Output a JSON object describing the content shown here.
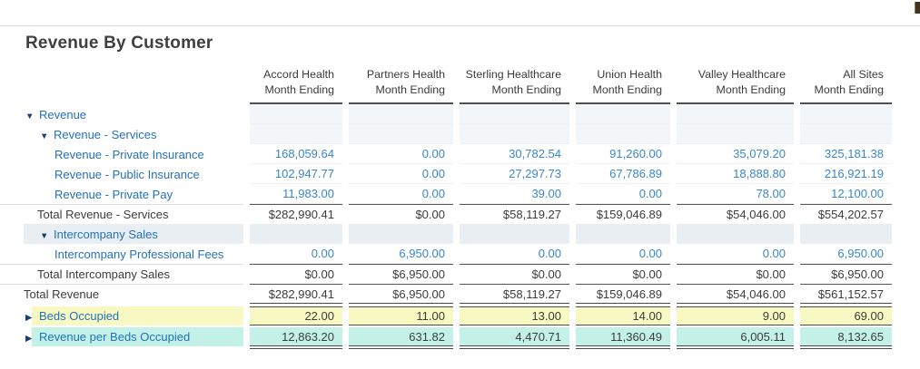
{
  "page": {
    "title": "Revenue By Customer"
  },
  "icons": {
    "expanded_triangle": "▼",
    "collapsed_triangle": "▶",
    "corner_partial_icon": "top-right-partial-icon"
  },
  "colors": {
    "label_blue": "#2471b8",
    "value_blue": "#3a87c8",
    "triangle_navy": "#1b3e6f",
    "group_row_tint": "#f3f6f8",
    "steel_row": "#e8eef2",
    "yellow_row": "#f8f8c3",
    "cyan_row": "#c3f1e7",
    "total_line": "#4a4a4a"
  },
  "table": {
    "columns": [
      {
        "name": "Accord Health",
        "period": "Month Ending"
      },
      {
        "name": "Partners Health",
        "period": "Month Ending"
      },
      {
        "name": "Sterling Healthcare",
        "period": "Month Ending"
      },
      {
        "name": "Union Health",
        "period": "Month Ending"
      },
      {
        "name": "Valley Healthcare",
        "period": "Month Ending"
      },
      {
        "name": "All Sites",
        "period": "Month Ending"
      }
    ],
    "rows": [
      {
        "label": "Revenue",
        "type": "group",
        "level": 1,
        "expanded": true,
        "values": [
          "",
          "",
          "",
          "",
          "",
          ""
        ]
      },
      {
        "label": "Revenue - Services",
        "type": "group",
        "level": 2,
        "expanded": true,
        "values": [
          "",
          "",
          "",
          "",
          "",
          ""
        ]
      },
      {
        "label": "Revenue - Private Insurance",
        "type": "leaf",
        "level": 3,
        "values": [
          "168,059.64",
          "0.00",
          "30,782.54",
          "91,260.00",
          "35,079.20",
          "325,181.38"
        ]
      },
      {
        "label": "Revenue - Public Insurance",
        "type": "leaf",
        "level": 3,
        "values": [
          "102,947.77",
          "0.00",
          "27,297.73",
          "67,786.89",
          "18,888.80",
          "216,921.19"
        ]
      },
      {
        "label": "Revenue - Private Pay",
        "type": "leaf",
        "level": 3,
        "values": [
          "11,983.00",
          "0.00",
          "39.00",
          "0.00",
          "78.00",
          "12,100.00"
        ]
      },
      {
        "label": "Total Revenue - Services",
        "type": "total",
        "level": 2,
        "values": [
          "$282,990.41",
          "$0.00",
          "$58,119.27",
          "$159,046.89",
          "$54,046.00",
          "$554,202.57"
        ]
      },
      {
        "label": "Intercompany Sales",
        "type": "group-steel",
        "level": 2,
        "expanded": true,
        "values": [
          "",
          "",
          "",
          "",
          "",
          ""
        ]
      },
      {
        "label": "Intercompany Professional Fees",
        "type": "leaf",
        "level": 3,
        "values": [
          "0.00",
          "6,950.00",
          "0.00",
          "0.00",
          "0.00",
          "6,950.00"
        ]
      },
      {
        "label": "Total Intercompany Sales",
        "type": "total",
        "level": 2,
        "values": [
          "$0.00",
          "$6,950.00",
          "$0.00",
          "$0.00",
          "$0.00",
          "$6,950.00"
        ]
      },
      {
        "label": "Total Revenue",
        "type": "grand",
        "level": 1,
        "values": [
          "$282,990.41",
          "$6,950.00",
          "$58,119.27",
          "$159,046.89",
          "$54,046.00",
          "$561,152.57"
        ]
      },
      {
        "label": "Beds Occupied",
        "type": "kpi",
        "highlight": "yellow",
        "expanded": false,
        "values": [
          "22.00",
          "11.00",
          "13.00",
          "14.00",
          "9.00",
          "69.00"
        ]
      },
      {
        "label": "Revenue per Beds Occupied",
        "type": "kpi",
        "highlight": "cyan",
        "expanded": false,
        "values": [
          "12,863.20",
          "631.82",
          "4,470.71",
          "11,360.49",
          "6,005.11",
          "8,132.65"
        ]
      }
    ]
  }
}
